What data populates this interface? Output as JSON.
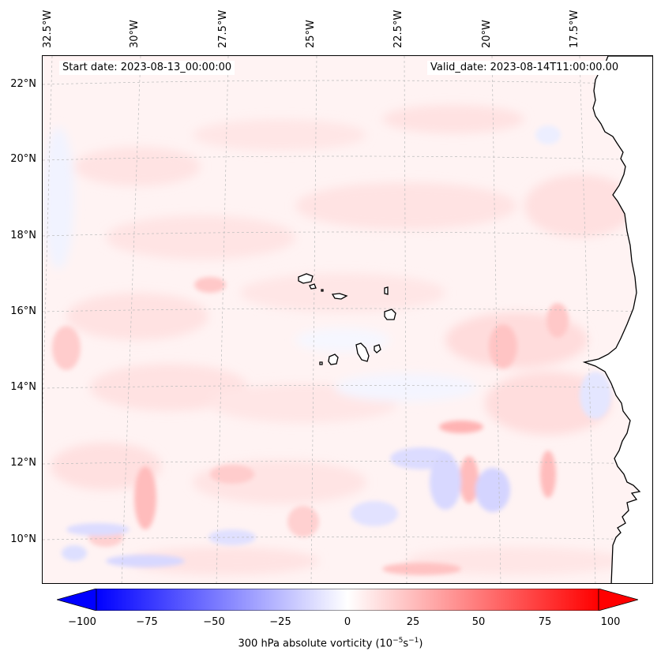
{
  "header": {
    "start_date": "Start date: 2023-08-13_00:00:00",
    "valid_date": "Valid_date: 2023-08-14T11:00:00.00"
  },
  "map": {
    "lon_labels": [
      "32.5°W",
      "30°W",
      "27.5°W",
      "25°W",
      "22.5°W",
      "20°W",
      "17.5°W"
    ],
    "lat_labels": [
      "22°N",
      "20°N",
      "18°N",
      "16°N",
      "14°N",
      "12°N",
      "10°N"
    ],
    "gridlines": "dashed",
    "coastline_color": "#000000"
  },
  "colorbar": {
    "ticks": [
      "−100",
      "−75",
      "−50",
      "−25",
      "0",
      "25",
      "50",
      "75",
      "100"
    ],
    "min": -100,
    "max": 100,
    "colormap": "bwr",
    "extend": "both",
    "label_main": "300 hPa absolute vorticity (10",
    "label_exp1": "−5",
    "label_mid": "s",
    "label_exp2": "−1",
    "label_end": ")"
  },
  "colors": {
    "negative": "#0000ff",
    "zero": "#ffffff",
    "positive": "#ff0000"
  }
}
